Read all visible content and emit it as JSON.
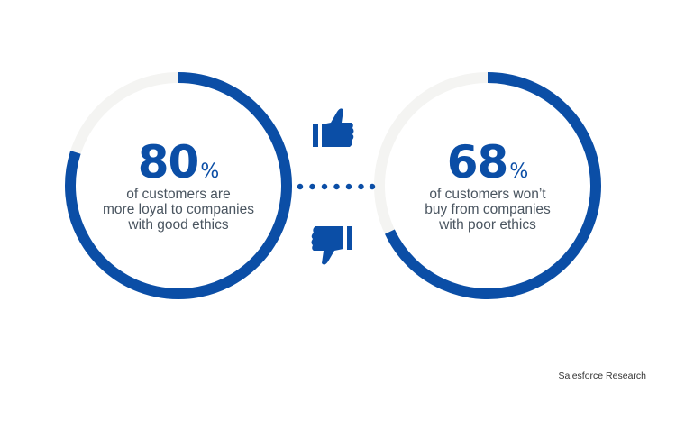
{
  "colors": {
    "accent": "#0b4ea6",
    "track": "#f4f4f2",
    "text": "#4a5560"
  },
  "chart_data": [
    {
      "type": "pie",
      "variant": "progress-ring",
      "value": 80,
      "max": 100,
      "label": "80",
      "unit": "%",
      "description_lines": [
        "of customers are",
        "more loyal to companies",
        "with good ethics"
      ]
    },
    {
      "type": "pie",
      "variant": "progress-ring",
      "value": 68,
      "max": 100,
      "label": "68",
      "unit": "%",
      "description_lines": [
        "of customers won’t",
        "buy from companies",
        "with poor ethics"
      ]
    }
  ],
  "icons": {
    "connector": "dotted-line",
    "top": "thumbs-up-icon",
    "bottom": "thumbs-down-icon"
  },
  "source": "Salesforce Research"
}
